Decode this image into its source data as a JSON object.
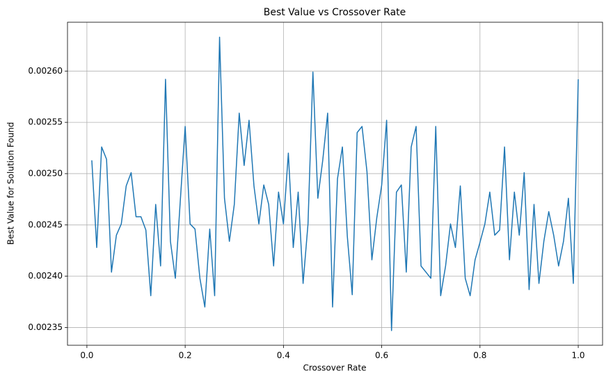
{
  "chart_data": {
    "type": "line",
    "title": "Best Value vs Crossover Rate",
    "x_label": "Crossover Rate",
    "y_label": "Best Value for Solution Found",
    "x": [
      0.01,
      0.02,
      0.03,
      0.04,
      0.05,
      0.06,
      0.07,
      0.08,
      0.09,
      0.1,
      0.11,
      0.12,
      0.13,
      0.14,
      0.15,
      0.16,
      0.17,
      0.18,
      0.19,
      0.2,
      0.21,
      0.22,
      0.23,
      0.24,
      0.25,
      0.26,
      0.27,
      0.28,
      0.29,
      0.3,
      0.31,
      0.32,
      0.33,
      0.34,
      0.35,
      0.36,
      0.37,
      0.38,
      0.39,
      0.4,
      0.41,
      0.42,
      0.43,
      0.44,
      0.45,
      0.46,
      0.47,
      0.48,
      0.49,
      0.5,
      0.51,
      0.52,
      0.53,
      0.54,
      0.55,
      0.56,
      0.57,
      0.58,
      0.59,
      0.6,
      0.61,
      0.62,
      0.63,
      0.64,
      0.65,
      0.66,
      0.67,
      0.68,
      0.69,
      0.7,
      0.71,
      0.72,
      0.73,
      0.74,
      0.75,
      0.76,
      0.77,
      0.78,
      0.79,
      0.8,
      0.81,
      0.82,
      0.83,
      0.84,
      0.85,
      0.86,
      0.87,
      0.88,
      0.89,
      0.9,
      0.91,
      0.92,
      0.93,
      0.94,
      0.95,
      0.96,
      0.97,
      0.98,
      0.99,
      1.0
    ],
    "series": [
      {
        "color": "#1f77b4",
        "values": [
          0.002513,
          0.002428,
          0.002526,
          0.002514,
          0.002404,
          0.00244,
          0.002451,
          0.002488,
          0.002501,
          0.002458,
          0.002458,
          0.002445,
          0.002381,
          0.00247,
          0.00241,
          0.002592,
          0.002434,
          0.002398,
          0.002473,
          0.002546,
          0.002451,
          0.002446,
          0.002398,
          0.00237,
          0.002446,
          0.002381,
          0.002633,
          0.002476,
          0.002434,
          0.00247,
          0.002559,
          0.002508,
          0.002552,
          0.002488,
          0.002451,
          0.002489,
          0.00247,
          0.00241,
          0.002482,
          0.002451,
          0.00252,
          0.002428,
          0.002482,
          0.002393,
          0.002451,
          0.002599,
          0.002476,
          0.002513,
          0.002559,
          0.00237,
          0.002495,
          0.002526,
          0.002439,
          0.002382,
          0.00254,
          0.002546,
          0.002502,
          0.002416,
          0.002457,
          0.002489,
          0.002552,
          0.002347,
          0.002482,
          0.002489,
          0.002404,
          0.002526,
          0.002546,
          0.00241,
          0.002404,
          0.002398,
          0.002546,
          0.002381,
          0.00241,
          0.002451,
          0.002428,
          0.002488,
          0.002398,
          0.002381,
          0.002416,
          0.002433,
          0.002451,
          0.002482,
          0.00244,
          0.002445,
          0.002526,
          0.002416,
          0.002482,
          0.00244,
          0.002501,
          0.002387,
          0.00247,
          0.002393,
          0.002434,
          0.002463,
          0.00244,
          0.00241,
          0.002434,
          0.002476,
          0.002393,
          0.002592
        ]
      }
    ],
    "xlim": [
      -0.0395,
      1.0495
    ],
    "xticks": [
      {
        "value": 0,
        "label": "0.0"
      },
      0.2,
      0.4,
      0.6,
      0.8,
      {
        "value": 1,
        "label": "1.0"
      }
    ],
    "ylim": [
      0.0023327,
      0.0026476
    ],
    "yticks": [
      0.00235,
      {
        "value": 0.0024,
        "label": "0.00240"
      },
      0.00245,
      {
        "value": 0.0025,
        "label": "0.00250"
      },
      0.00255,
      {
        "value": 0.0026,
        "label": "0.00260"
      }
    ],
    "grid": true
  }
}
